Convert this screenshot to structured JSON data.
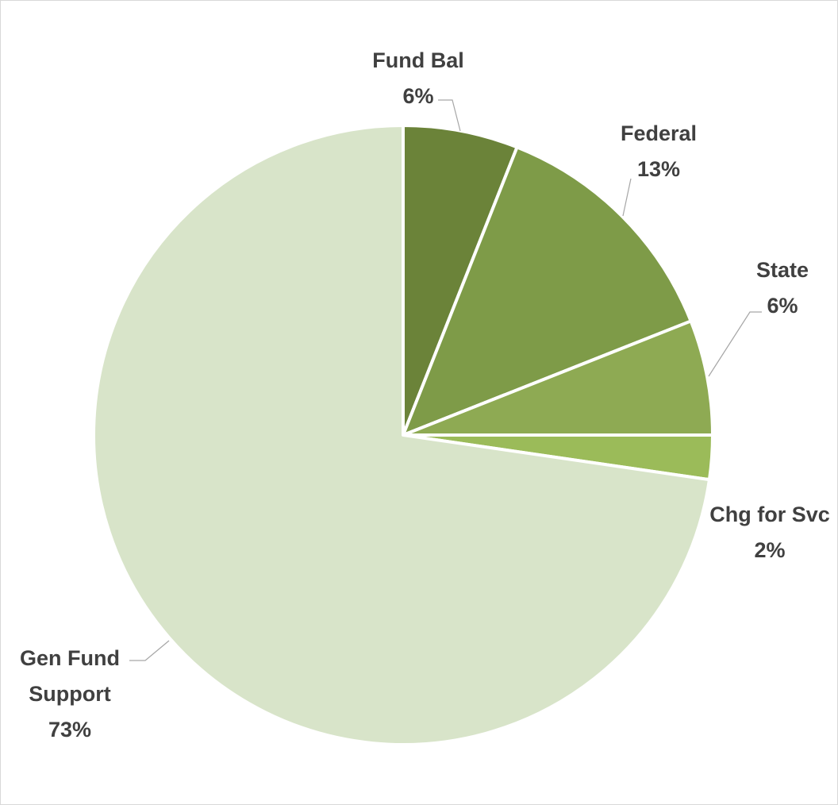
{
  "chart_data": {
    "type": "pie",
    "title": "",
    "start_angle_deg": 0,
    "direction": "clockwise",
    "slices": [
      {
        "name": "Fund Bal",
        "label_lines": [
          "Fund Bal"
        ],
        "percent_label": "6%",
        "value": 6,
        "color": "#6b8339"
      },
      {
        "name": "Federal",
        "label_lines": [
          "Federal"
        ],
        "percent_label": "13%",
        "value": 13,
        "color": "#7e9b48"
      },
      {
        "name": "State",
        "label_lines": [
          "State"
        ],
        "percent_label": "6%",
        "value": 6,
        "color": "#8eaa53"
      },
      {
        "name": "Chg for Svc",
        "label_lines": [
          "Chg for Svc"
        ],
        "percent_label": "2%",
        "value": 2.3,
        "color": "#9bbb59"
      },
      {
        "name": "Gen Fund Support",
        "label_lines": [
          "Gen Fund",
          "Support"
        ],
        "percent_label": "73%",
        "value": 72.7,
        "color": "#d8e4c9"
      }
    ]
  }
}
